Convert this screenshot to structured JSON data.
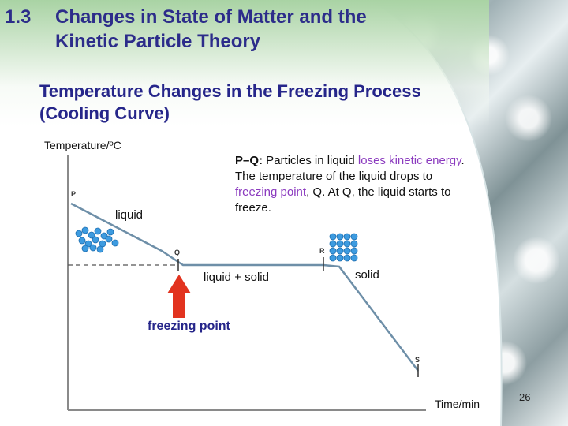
{
  "title": {
    "number": "1.3",
    "text": "Changes in State of Matter and the Kinetic Particle Theory"
  },
  "subtitle": "Temperature Changes in the Freezing Process (Cooling Curve)",
  "graph": {
    "y_axis_label": "Temperature/ºC",
    "x_axis_label": "Time/min",
    "points": {
      "p": "P",
      "q": "Q",
      "r": "R",
      "s": "S"
    },
    "state_labels": {
      "liquid": "liquid",
      "liquid_solid": "liquid + solid",
      "solid": "solid"
    },
    "freezing_point_label": "freezing point",
    "arrow_color": "#e2331f"
  },
  "note": {
    "segment": "P–Q:",
    "t1": " Particles in liquid ",
    "hl1": "loses kinetic energy",
    "t2": ". The temperature of the liquid drops to ",
    "hl2": "freezing point",
    "t3": ", Q. At Q, the liquid starts to freeze."
  },
  "slide_number": "26",
  "colors": {
    "title": "#2c2c8a",
    "highlight": "#8b3bbf",
    "particle": "#3d9be0"
  }
}
